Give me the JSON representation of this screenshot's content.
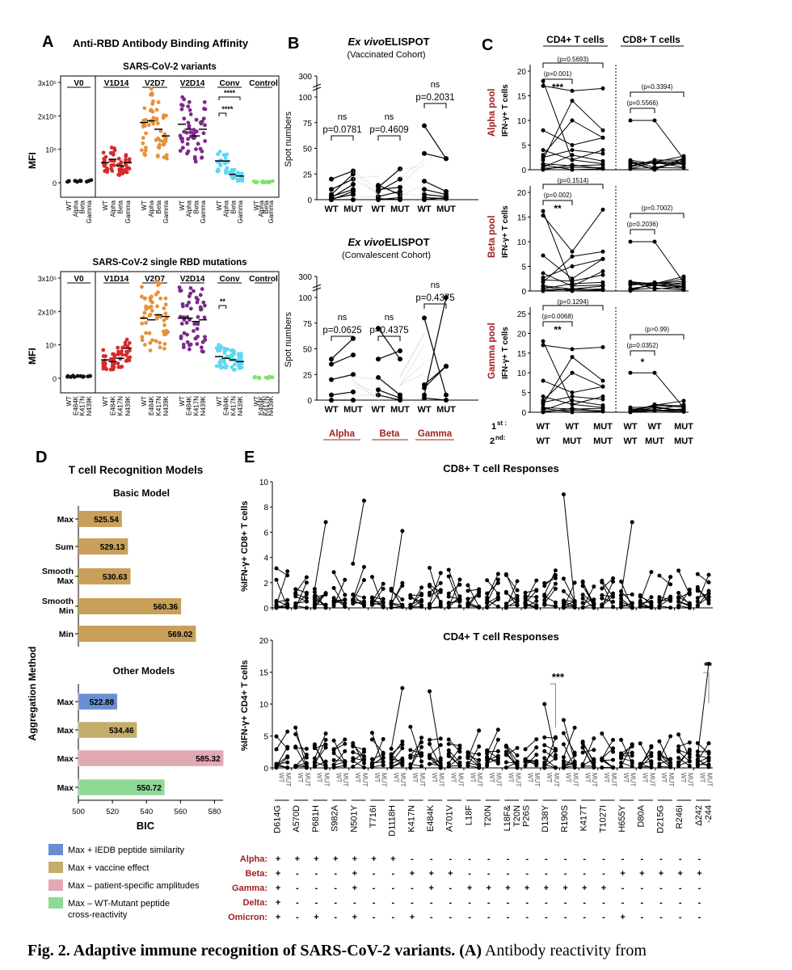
{
  "panelA": {
    "letter": "A",
    "title": "Anti-RBD Antibody Binding Affinity",
    "ylabel": "MFI",
    "yticks": [
      "3x10⁵",
      "2x10⁵",
      "10⁵",
      "0"
    ],
    "groups": [
      "V0",
      "V1D14",
      "V2D7",
      "V2D14",
      "Conv",
      "Control"
    ],
    "group_colors": [
      "#111111",
      "#d62b2b",
      "#e8903a",
      "#7b2a8a",
      "#5fd8f0",
      "#7fe36a"
    ],
    "top": {
      "subtitle": "SARS-CoV-2 variants",
      "xlabels": [
        "WT",
        "Alpha",
        "Beta",
        "Gamma"
      ],
      "sig": [
        "****",
        "****"
      ],
      "chart_data": {
        "type": "scatter",
        "y_unit": "MFI",
        "ylim": [
          0,
          300000
        ],
        "medians": {
          "V0": [
            5000,
            5000,
            5000,
            5000
          ],
          "V1D14": [
            60000,
            70000,
            50000,
            60000
          ],
          "V2D7": [
            180000,
            185000,
            160000,
            140000
          ],
          "V2D14": [
            175000,
            160000,
            140000,
            160000
          ],
          "Conv": [
            65000,
            65000,
            25000,
            20000
          ],
          "Control": [
            2000,
            2000,
            2000,
            2000
          ]
        }
      }
    },
    "bottom": {
      "subtitle": "SARS-CoV-2 single RBD mutations",
      "xlabels": [
        "WT",
        "E484K",
        "K417N",
        "N439K"
      ],
      "sig": [
        "**"
      ],
      "chart_data": {
        "type": "scatter",
        "y_unit": "MFI",
        "ylim": [
          0,
          300000
        ],
        "medians": {
          "V0": [
            5000,
            5000,
            5000,
            5000
          ],
          "V1D14": [
            55000,
            50000,
            60000,
            90000
          ],
          "V2D7": [
            180000,
            175000,
            190000,
            185000
          ],
          "V2D14": [
            180000,
            180000,
            170000,
            175000
          ],
          "Conv": [
            65000,
            60000,
            55000,
            50000
          ],
          "Control": [
            2000,
            2000,
            2000,
            2000
          ]
        }
      }
    }
  },
  "panelB": {
    "letter": "B",
    "ylabel": "Spot numbers",
    "yticks": [
      "300",
      "100",
      "75",
      "50",
      "25",
      "0"
    ],
    "xpair": [
      "WT",
      "MUT"
    ],
    "variants": [
      "Alpha",
      "Beta",
      "Gamma"
    ],
    "top": {
      "title_italic": "Ex vivo",
      "title_rest": " ELISPOT",
      "subtitle": "(Vaccinated Cohort)",
      "ns": "ns",
      "pvals": [
        "p=0.0781",
        "p=0.4609",
        "p=0.2031"
      ]
    },
    "bottom": {
      "title_italic": "Ex vivo",
      "title_rest": " ELISPOT",
      "subtitle": "(Convalescent Cohort)",
      "ns": "ns",
      "pvals": [
        "p=0.0625",
        "p=0.4375",
        "p=0.4375"
      ]
    }
  },
  "panelC": {
    "letter": "C",
    "col_cd4": "CD4+ T cells",
    "col_cd8": "CD8+ T cells",
    "ylabel": "IFN-γ+ T cells",
    "pools": [
      {
        "name": "Alpha pool",
        "yticks": [
          "20",
          "15",
          "10",
          "5",
          "0"
        ],
        "p_wt_mut": "(p=0.001)",
        "sig": "***",
        "p_wt_mutmut": "(p=0.5693)",
        "p_cd8_1": "(p=0.5566)",
        "p_cd8_2": "(p=0.3394)",
        "sig8": ""
      },
      {
        "name": "Beta pool",
        "yticks": [
          "20",
          "15",
          "10",
          "5",
          "0"
        ],
        "p_wt_mut": "(p=0.002)",
        "sig": "**",
        "p_wt_mutmut": "(p=0.1514)",
        "p_cd8_1": "(p=0.2036)",
        "p_cd8_2": "(p=0.7002)",
        "sig8": ""
      },
      {
        "name": "Gamma pool",
        "yticks": [
          "25",
          "20",
          "15",
          "10",
          "5",
          "0"
        ],
        "p_wt_mut": "(p=0.0068)",
        "sig": "**",
        "p_wt_mutmut": "(p=0.1294)",
        "p_cd8_1": "(p=0.0352)",
        "p_cd8_2": "(p>0.99)",
        "sig8": "*"
      }
    ],
    "row1_label": "1",
    "row1_sup": "st",
    "row2_label": "2",
    "row2_sup": "nd",
    "row1": [
      "WT",
      "WT",
      "MUT",
      "WT",
      "WT",
      "MUT"
    ],
    "row2": [
      "WT",
      "MUT",
      "MUT",
      "WT",
      "MUT",
      "MUT"
    ]
  },
  "panelD": {
    "letter": "D",
    "title": "T cell Recognition Models",
    "basic_title": "Basic Model",
    "other_title": "Other Models",
    "ylabel": "Aggregation Method",
    "xlabel": "BIC",
    "xticks": [
      "500",
      "520",
      "540",
      "560",
      "580"
    ],
    "chart_data": {
      "type": "bar",
      "xlim": [
        500,
        585
      ],
      "basic": [
        {
          "label": "Max",
          "value": 525.54
        },
        {
          "label": "Sum",
          "value": 529.13
        },
        {
          "label": "Smooth Max",
          "value": 530.63
        },
        {
          "label": "Smooth Min",
          "value": 560.36
        },
        {
          "label": "Min",
          "value": 569.02
        }
      ],
      "other": [
        {
          "label": "Max",
          "value": 522.88,
          "color": "#6a8fd0"
        },
        {
          "label": "Max",
          "value": 534.46,
          "color": "#c2ad6a"
        },
        {
          "label": "Max",
          "value": 585.32,
          "color": "#e0a9b3"
        },
        {
          "label": "Max",
          "value": 550.72,
          "color": "#8fd896"
        }
      ],
      "basic_color": "#c9a05a"
    },
    "legend": [
      {
        "label": "Max + IEDB peptide similarity",
        "color": "#6a8fd0"
      },
      {
        "label": "Max + vaccine effect",
        "color": "#c2ad6a"
      },
      {
        "label": "Max – patient-specific amplitudes",
        "color": "#e0a9b3"
      },
      {
        "label": "Max – WT-Mutant peptide",
        "label2": "cross-reactivity",
        "color": "#8fd896"
      }
    ]
  },
  "panelE": {
    "letter": "E",
    "cd8_title": "CD8+ T cell Responses",
    "cd4_title": "CD4+ T cell Responses",
    "cd8_ylabel": "%IFN-γ+ CD8+ T cells",
    "cd4_ylabel": "%IFN-γ+ CD4+ T cells",
    "cd8_yticks": [
      "10",
      "8",
      "6",
      "4",
      "2",
      "0"
    ],
    "cd4_yticks": [
      "20",
      "15",
      "10",
      "5",
      "0"
    ],
    "wt": "WT",
    "mut": "MUT",
    "sig_d138y": "***",
    "sig_d242": "**",
    "mutations": [
      "D614G",
      "A570D",
      "P681H",
      "S982A",
      "N501Y",
      "T716I",
      "D1118H",
      "K417N",
      "E484K",
      "A701V",
      "L18F",
      "T20N",
      "L18F& T20N",
      "P26S",
      "D138Y",
      "R190S",
      "K417T",
      "T1027I",
      "H655Y",
      "D80A",
      "D215G",
      "R246I",
      "Δ242 -244"
    ],
    "variant_rows": [
      {
        "name": "Alpha:",
        "marks": [
          "+",
          "+",
          "+",
          "+",
          "+",
          "+",
          "+",
          "-",
          "-",
          "-",
          "-",
          "-",
          "-",
          "-",
          "-",
          "-",
          "-",
          "-",
          "-",
          "-",
          "-",
          "-",
          "-"
        ]
      },
      {
        "name": "Beta:",
        "marks": [
          "+",
          "-",
          "-",
          "-",
          "+",
          "-",
          "-",
          "+",
          "+",
          "+",
          "-",
          "-",
          "-",
          "-",
          "-",
          "-",
          "-",
          "-",
          "+",
          "+",
          "+",
          "+",
          "+"
        ]
      },
      {
        "name": "Gamma:",
        "marks": [
          "+",
          "-",
          "-",
          "-",
          "+",
          "-",
          "-",
          "-",
          "+",
          "-",
          "+",
          "+",
          "+",
          "+",
          "+",
          "+",
          "+",
          "+",
          "-",
          "-",
          "-",
          "-",
          "-"
        ]
      },
      {
        "name": "Delta:",
        "marks": [
          "+",
          "-",
          "-",
          "-",
          "-",
          "-",
          "-",
          "-",
          "-",
          "-",
          "-",
          "-",
          "-",
          "-",
          "-",
          "-",
          "-",
          "-",
          "-",
          "-",
          "-",
          "-",
          "-"
        ]
      },
      {
        "name": "Omicron:",
        "marks": [
          "+",
          "-",
          "+",
          "-",
          "+",
          "-",
          "-",
          "+",
          "-",
          "-",
          "-",
          "-",
          "-",
          "-",
          "-",
          "-",
          "-",
          "-",
          "+",
          "-",
          "-",
          "-",
          "-"
        ]
      }
    ]
  },
  "caption": {
    "bold": "Fig. 2. Adaptive immune recognition of SARS-CoV-2 variants. (A)",
    "rest": " Antibody reactivity from"
  }
}
